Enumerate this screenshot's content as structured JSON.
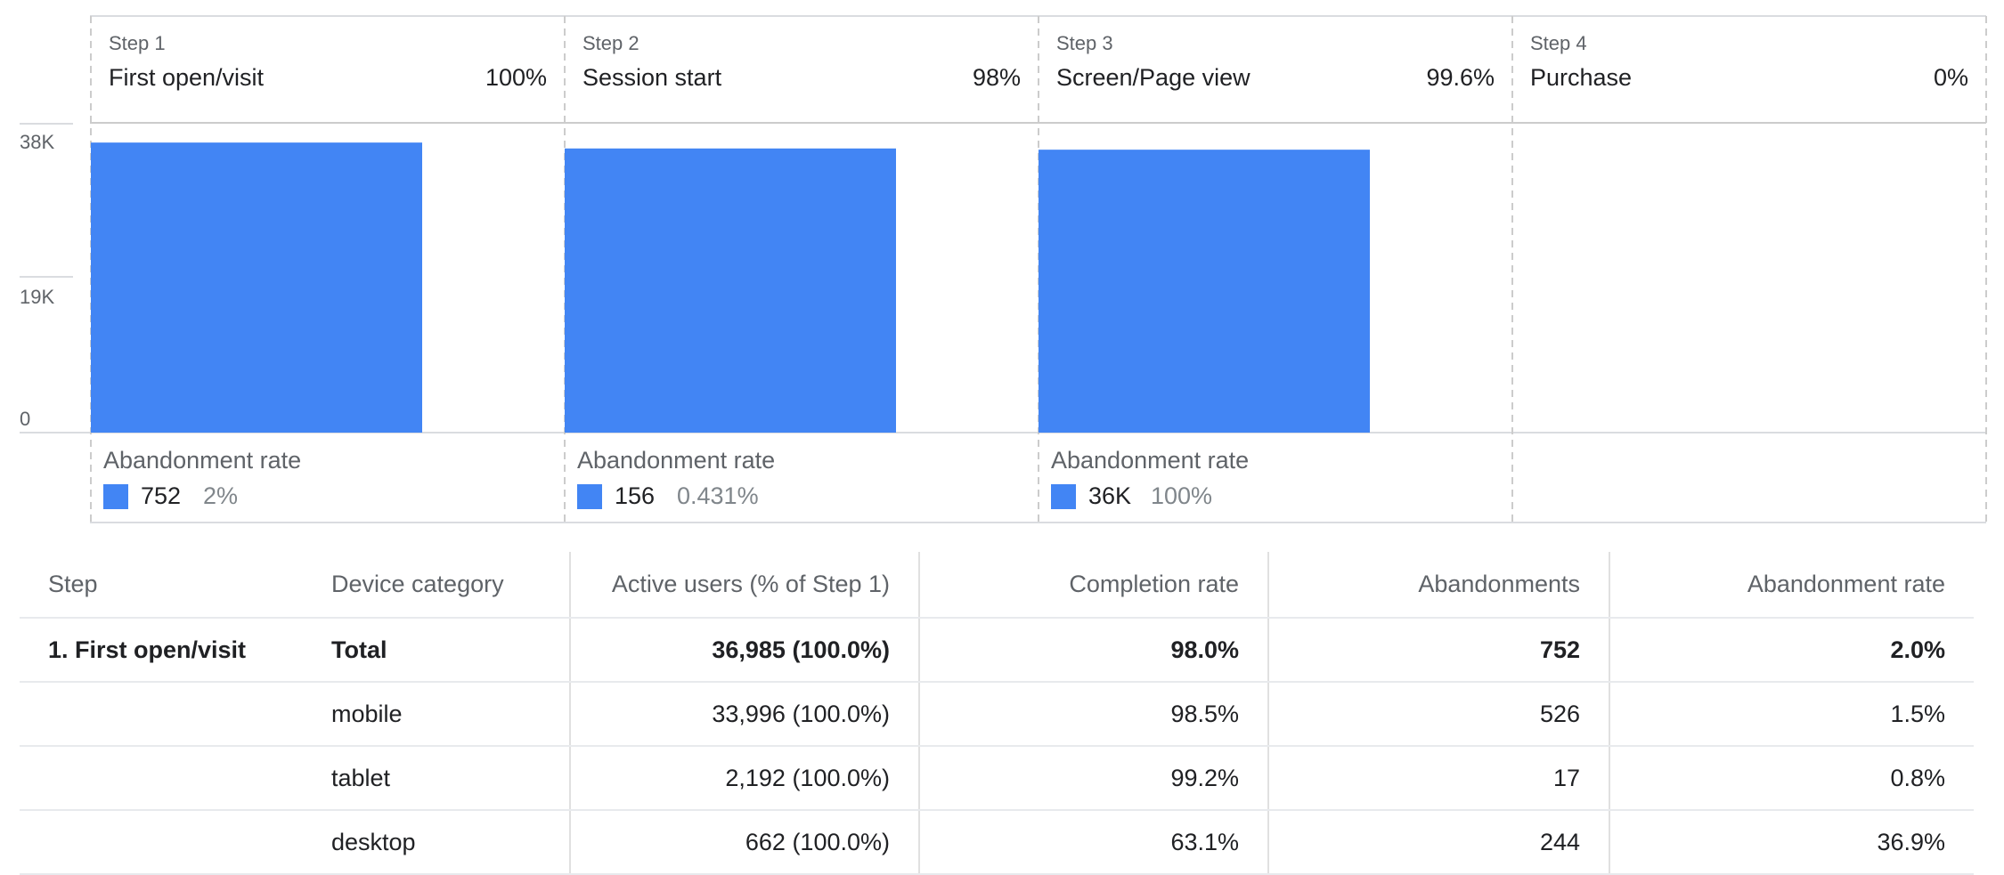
{
  "colors": {
    "bar": "#4285f4",
    "grid": "#dadce0",
    "divider": "#cccccc"
  },
  "steps": [
    {
      "num": "Step 1",
      "name": "First open/visit",
      "pct": "100%",
      "abandon_label": "Abandonment rate",
      "abandon_count": "752",
      "abandon_rate": "2%"
    },
    {
      "num": "Step 2",
      "name": "Session start",
      "pct": "98%",
      "abandon_label": "Abandonment rate",
      "abandon_count": "156",
      "abandon_rate": "0.431%"
    },
    {
      "num": "Step 3",
      "name": "Screen/Page view",
      "pct": "99.6%",
      "abandon_label": "Abandonment rate",
      "abandon_count": "36K",
      "abandon_rate": "100%"
    },
    {
      "num": "Step 4",
      "name": "Purchase",
      "pct": "0%"
    }
  ],
  "chart_data": {
    "type": "bar",
    "categories": [
      "First open/visit",
      "Session start",
      "Screen/Page view",
      "Purchase"
    ],
    "values": [
      36985,
      36233,
      36077,
      0
    ],
    "yticks": [
      "0",
      "19K",
      "38K"
    ],
    "ylim": [
      0,
      39500
    ],
    "grid": true
  },
  "table": {
    "headers": [
      "Step",
      "Device category",
      "Active users (% of Step 1)",
      "Completion rate",
      "Abandonments",
      "Abandonment rate"
    ],
    "rows": [
      {
        "step": "1. First open/visit",
        "device": "Total",
        "users": "36,985 (100.0%)",
        "completion": "98.0%",
        "abandonments": "752",
        "rate": "2.0%"
      },
      {
        "step": "",
        "device": "mobile",
        "users": "33,996 (100.0%)",
        "completion": "98.5%",
        "abandonments": "526",
        "rate": "1.5%"
      },
      {
        "step": "",
        "device": "tablet",
        "users": "2,192 (100.0%)",
        "completion": "99.2%",
        "abandonments": "17",
        "rate": "0.8%"
      },
      {
        "step": "",
        "device": "desktop",
        "users": "662 (100.0%)",
        "completion": "63.1%",
        "abandonments": "244",
        "rate": "36.9%"
      }
    ]
  }
}
